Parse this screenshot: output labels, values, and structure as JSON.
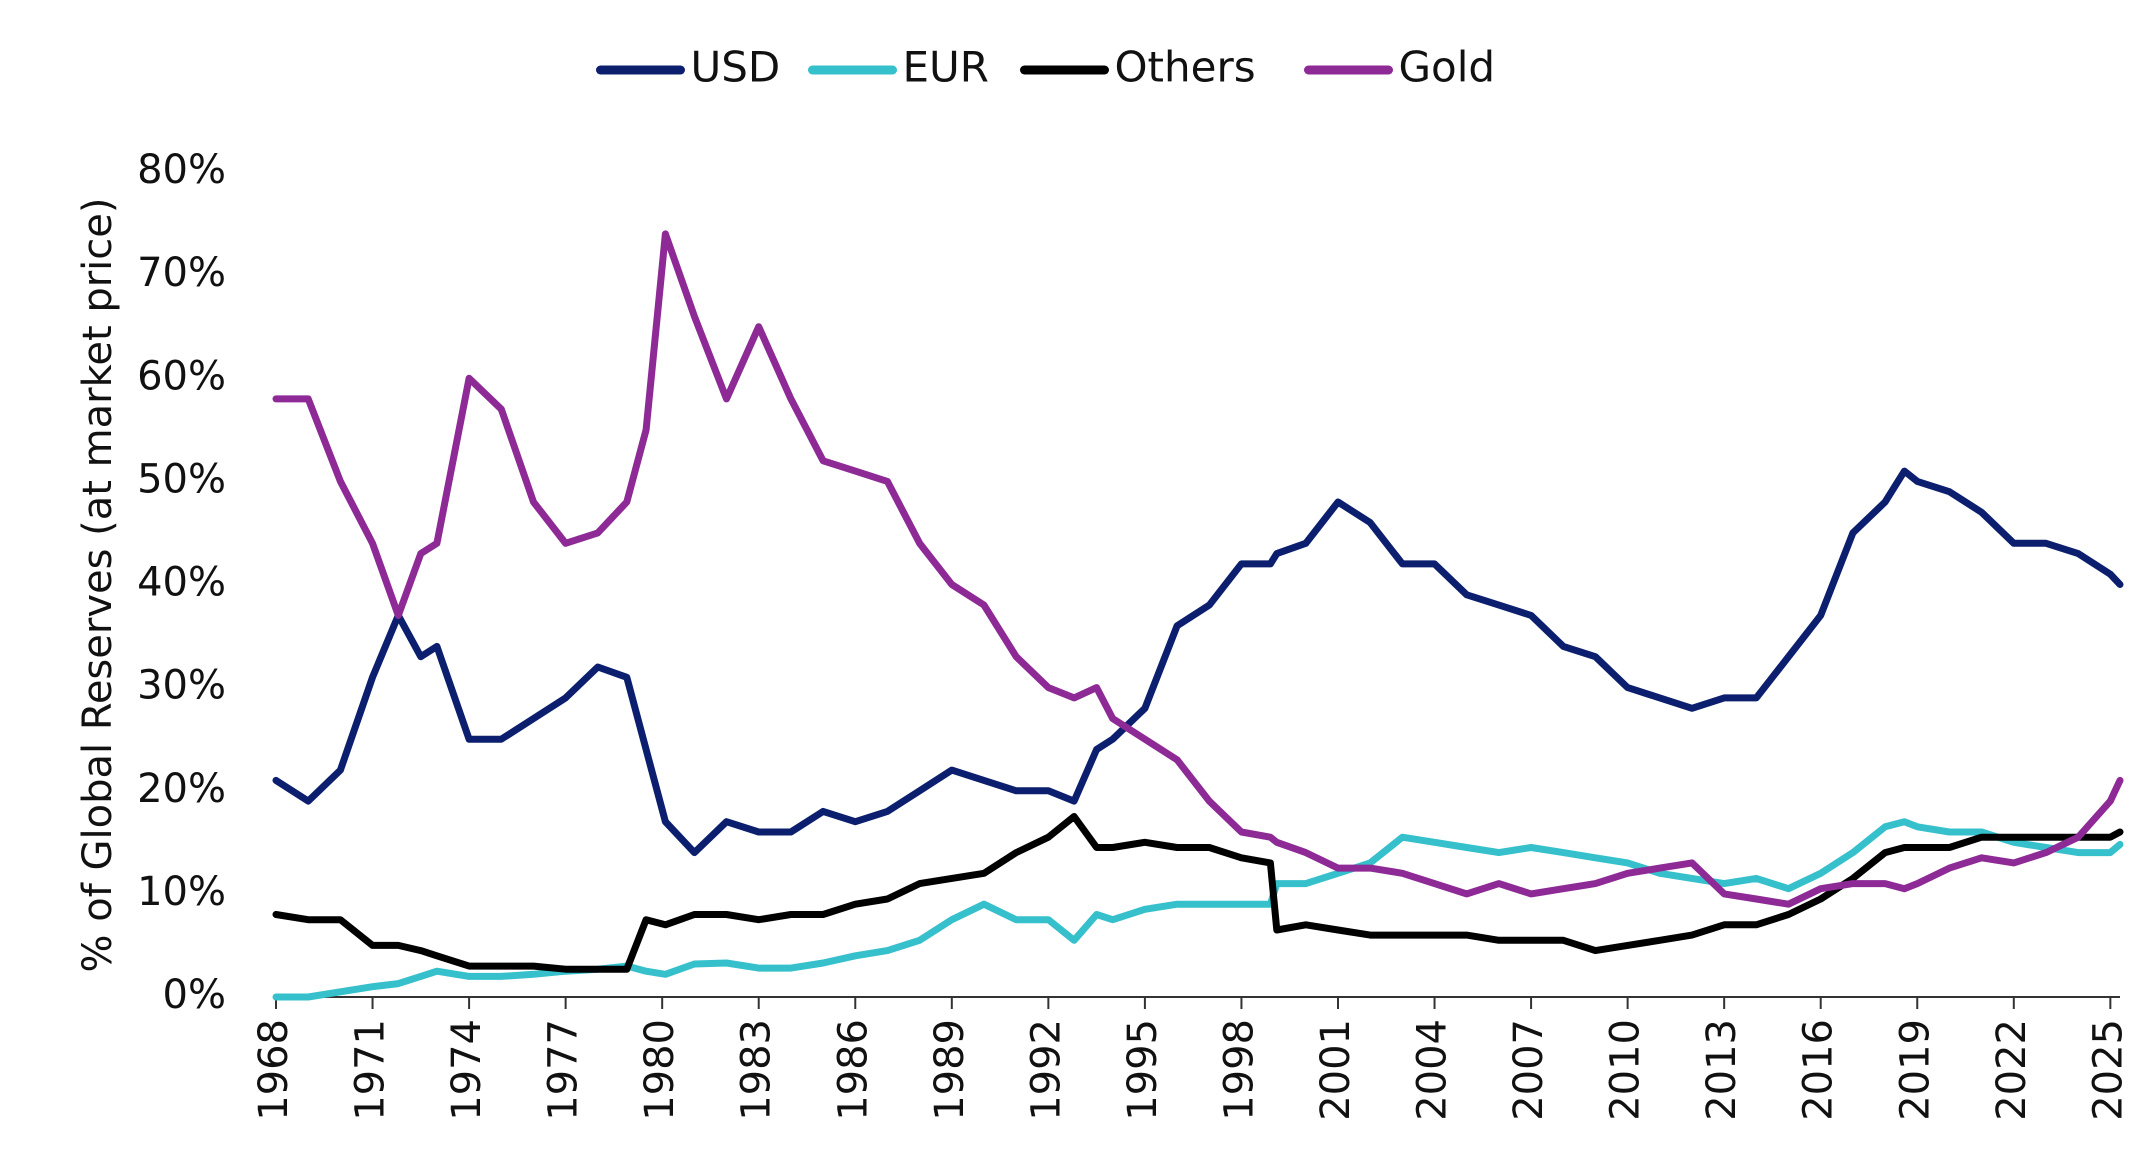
{
  "chart_data": {
    "type": "line",
    "y_label": "% of Global Reserves (at market price)",
    "x": [
      1968,
      1969,
      1970,
      1971,
      1971.8,
      1972.5,
      1973,
      1974,
      1975,
      1976,
      1977,
      1978,
      1978.9,
      1979.5,
      1980.1,
      1981,
      1982,
      1983,
      1984,
      1985,
      1986,
      1987,
      1988,
      1989,
      1990,
      1991,
      1992,
      1992.8,
      1993.5,
      1994,
      1995,
      1996,
      1997,
      1998,
      1998.9,
      1999.1,
      2000,
      2001,
      2002,
      2003,
      2004,
      2005,
      2006,
      2007,
      2008,
      2009,
      2010,
      2011,
      2012,
      2013,
      2014,
      2015,
      2016,
      2017,
      2018,
      2018.6,
      2019,
      2020,
      2021,
      2022,
      2023,
      2024,
      2025,
      2025.3
    ],
    "series": [
      {
        "name": "USD",
        "color": "#0c1f6e",
        "values": [
          21,
          19,
          22,
          31,
          37,
          33,
          34,
          25,
          25,
          27,
          29,
          32,
          31,
          24,
          17,
          14,
          17,
          16,
          16,
          18,
          17,
          18,
          20,
          22,
          21,
          20,
          20,
          19,
          24,
          25,
          28,
          36,
          38,
          42,
          42,
          43,
          44,
          48,
          46,
          42,
          42,
          39,
          38,
          37,
          34,
          33,
          30,
          29,
          28,
          29,
          29,
          33,
          37,
          45,
          48,
          51,
          50,
          49,
          47,
          44,
          44,
          43,
          41,
          40
        ]
      },
      {
        "name": "EUR",
        "color": "#35c0cc",
        "values": [
          0,
          0,
          0.5,
          1,
          1.3,
          2,
          2.5,
          2,
          2,
          2.2,
          2.5,
          2.7,
          3,
          2.5,
          2.2,
          3.2,
          3.3,
          2.8,
          2.8,
          3.3,
          4,
          4.5,
          5.5,
          7.5,
          9,
          7.5,
          7.5,
          5.5,
          8,
          7.5,
          8.5,
          9,
          9,
          9,
          9,
          11,
          11,
          12,
          13,
          15.5,
          15,
          14.5,
          14,
          14.5,
          14,
          13.5,
          13,
          12,
          11.5,
          11,
          11.5,
          10.5,
          12,
          14,
          16.5,
          17,
          16.5,
          16,
          16,
          15,
          14.5,
          14,
          14,
          14.8
        ]
      },
      {
        "name": "Others",
        "color": "#000000",
        "values": [
          8,
          7.5,
          7.5,
          5,
          5,
          4.5,
          4,
          3,
          3,
          3,
          2.7,
          2.7,
          2.7,
          7.5,
          7,
          8,
          8,
          7.5,
          8,
          8,
          9,
          9.5,
          11,
          11.5,
          12,
          14,
          15.5,
          17.5,
          14.5,
          14.5,
          15,
          14.5,
          14.5,
          13.5,
          13,
          6.5,
          7,
          6.5,
          6,
          6,
          6,
          6,
          5.5,
          5.5,
          5.5,
          4.5,
          5,
          5.5,
          6,
          7,
          7,
          8,
          9.5,
          11.5,
          14,
          14.5,
          14.5,
          14.5,
          15.5,
          15.5,
          15.5,
          15.5,
          15.5,
          16
        ]
      },
      {
        "name": "Gold",
        "color": "#8e2a96",
        "values": [
          58,
          58,
          50,
          44,
          37,
          43,
          44,
          60,
          57,
          48,
          44,
          45,
          48,
          55,
          74,
          66,
          58,
          65,
          58,
          52,
          51,
          50,
          44,
          40,
          38,
          33,
          30,
          29,
          30,
          27,
          25,
          23,
          19,
          16,
          15.5,
          15,
          14,
          12.5,
          12.5,
          12,
          11,
          10,
          11,
          10,
          10.5,
          11,
          12,
          12.5,
          13,
          10,
          9.5,
          9,
          10.5,
          11,
          11,
          10.5,
          11,
          12.5,
          13.5,
          13,
          14,
          15.5,
          19,
          21
        ]
      }
    ],
    "xlim": [
      1968,
      2025.3
    ],
    "xticks": [
      1968,
      1971,
      1974,
      1977,
      1980,
      1983,
      1986,
      1989,
      1992,
      1995,
      1998,
      2001,
      2004,
      2007,
      2010,
      2013,
      2016,
      2019,
      2022,
      2025
    ],
    "ylim": [
      0,
      80
    ],
    "yticks": [
      {
        "value": 0,
        "label": "0%"
      },
      {
        "value": 10,
        "label": "10%"
      },
      {
        "value": 20,
        "label": "20%"
      },
      {
        "value": 30,
        "label": "30%"
      },
      {
        "value": 40,
        "label": "40%"
      },
      {
        "value": 50,
        "label": "50%"
      },
      {
        "value": 60,
        "label": "60%"
      },
      {
        "value": 70,
        "label": "70%"
      },
      {
        "value": 80,
        "label": "80%"
      }
    ],
    "legend": "top"
  }
}
